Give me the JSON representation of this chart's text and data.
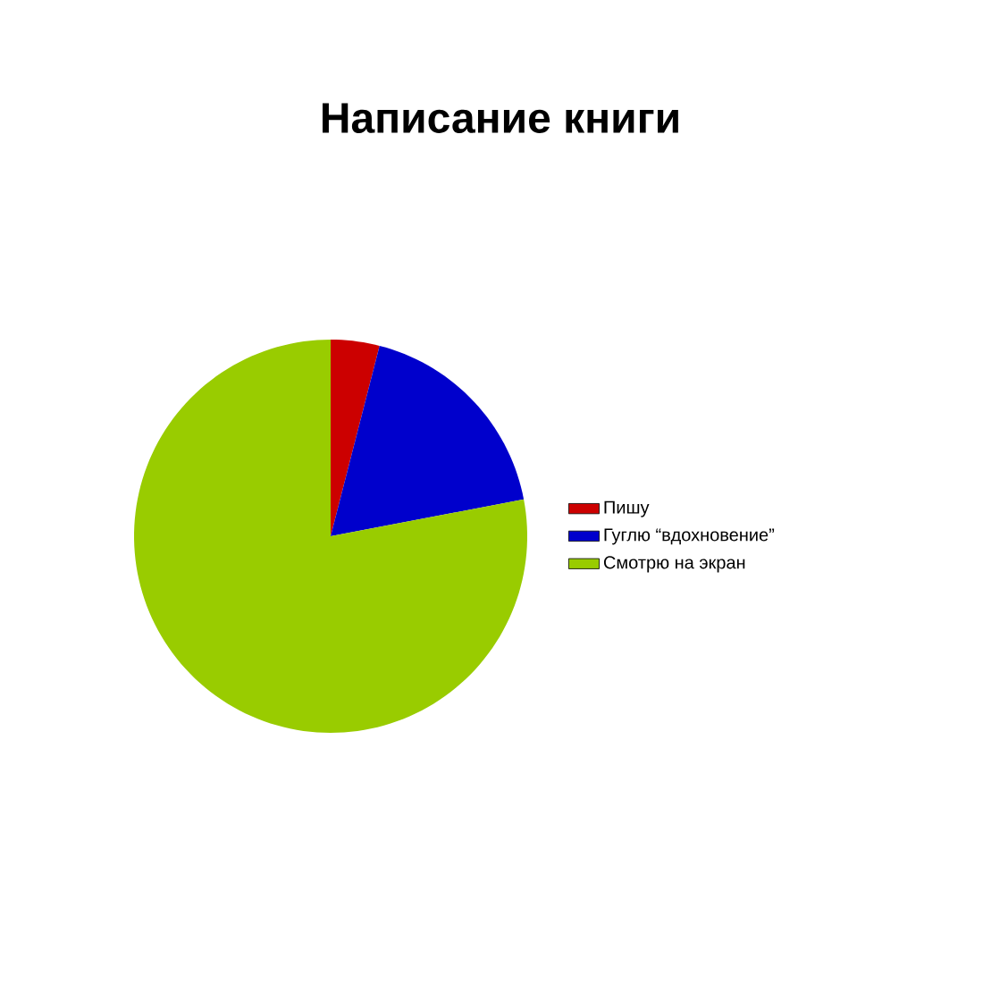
{
  "chart_data": {
    "type": "pie",
    "title": "Написание книги",
    "categories": [
      "Пишу",
      "Гуглю “вдохновение”",
      "Смотрю на экран"
    ],
    "values": [
      4,
      18,
      78
    ],
    "colors": [
      "#cc0000",
      "#0000cc",
      "#99cc00"
    ],
    "legend": "right"
  }
}
